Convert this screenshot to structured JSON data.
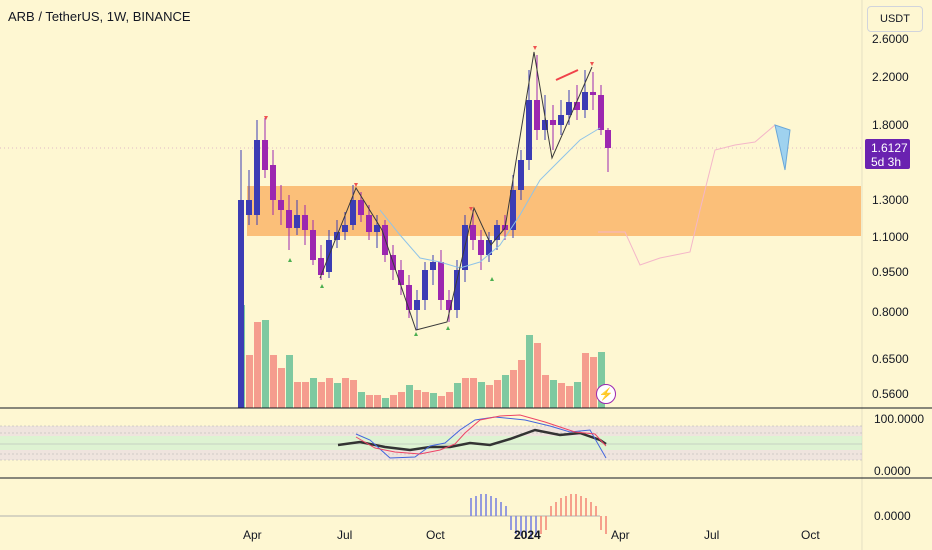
{
  "header": {
    "title": "ARB / TetherUS, 1W, BINANCE"
  },
  "toolbar": {
    "currency_label": "USDT"
  },
  "price_axis": {
    "labels": [
      "2.6000",
      "2.2000",
      "1.8000",
      "1.3000",
      "1.1000",
      "0.9500",
      "0.8000",
      "0.6500",
      "0.5600"
    ]
  },
  "last_price": {
    "value": "1.6127",
    "countdown": "5d 3h"
  },
  "indicator_axis": {
    "stoch_labels": [
      "100.0000",
      "0.0000"
    ],
    "macd_labels": [
      "0.0000"
    ]
  },
  "time_axis": {
    "labels": [
      "Apr",
      "Jul",
      "Oct",
      "2024",
      "Apr",
      "Jul",
      "Oct"
    ]
  },
  "colors": {
    "background": "#FEF7D2",
    "bull_candle": "#3c3cb4",
    "bear_candle": "#9c27b0",
    "zone_fill": "#FBBF79",
    "volume_up": "#7fc9a0",
    "volume_down": "#f59d8e",
    "last_price_tag": "#6a22b0"
  },
  "icons": {
    "bolt": "lightning-bolt-icon"
  }
}
